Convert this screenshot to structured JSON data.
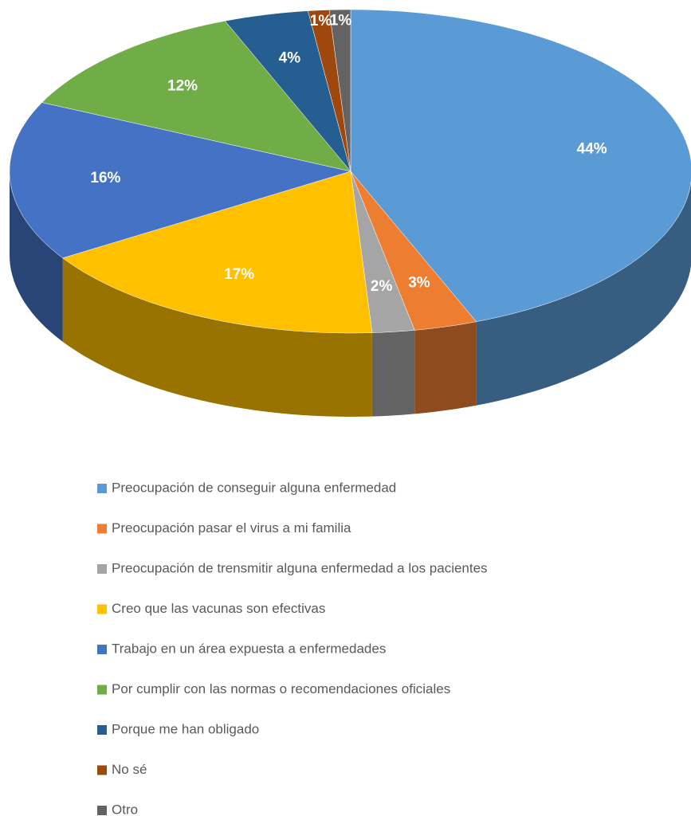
{
  "chart_data": {
    "type": "pie",
    "categories": [
      "Preocupación de conseguir alguna enfermedad",
      "Preocupación pasar el virus a mi familia",
      "Preocupación de trensmitir alguna enfermedad a los pacientes",
      "Creo que las vacunas son efectivas",
      "Trabajo en un área expuesta a enfermedades",
      "Por cumplir con las normas o recomendaciones oficiales",
      "Porque me han obligado",
      "No sé",
      "Otro"
    ],
    "values": [
      44,
      3,
      2,
      17,
      16,
      12,
      4,
      1,
      1
    ],
    "value_labels": [
      "44%",
      "3%",
      "2%",
      "17%",
      "16%",
      "12%",
      "4%",
      "1%",
      "1%"
    ],
    "colors": [
      "#5b9bd5",
      "#ed7d31",
      "#a5a5a5",
      "#ffc000",
      "#4472c4",
      "#70ad47",
      "#255e91",
      "#9e480e",
      "#636363"
    ],
    "legend": "bottom"
  }
}
